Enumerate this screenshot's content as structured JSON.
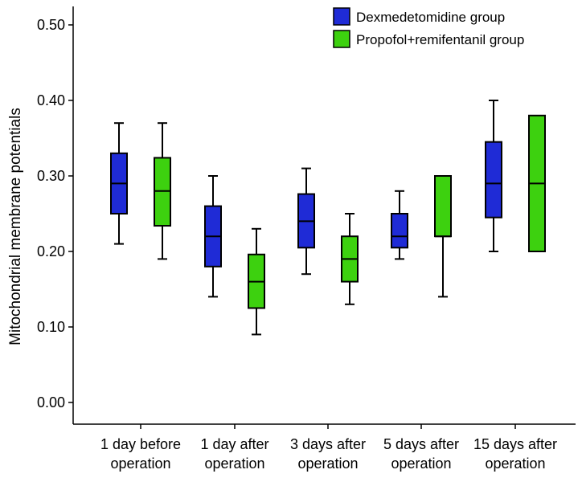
{
  "chart_data": {
    "type": "boxplot",
    "title": "",
    "xlabel": "",
    "ylabel": "Mitochondrial membrane potentials",
    "ylim": [
      0.0,
      0.5
    ],
    "yticks": [
      "0.00",
      "0.10",
      "0.20",
      "0.30",
      "0.40",
      "0.50"
    ],
    "ytick_values": [
      0.0,
      0.1,
      0.2,
      0.3,
      0.4,
      0.5
    ],
    "categories": [
      [
        "1 day before",
        "operation"
      ],
      [
        "1 day after",
        "operation"
      ],
      [
        "3 days after",
        "operation"
      ],
      [
        "5 days after",
        "operation"
      ],
      [
        "15 days after",
        "operation"
      ]
    ],
    "legend_position": "top-right",
    "series": [
      {
        "name": "Dexmedetomidine group",
        "color": "#1f2bd6",
        "boxes": [
          {
            "min": 0.21,
            "q1": 0.25,
            "median": 0.29,
            "q3": 0.33,
            "max": 0.37
          },
          {
            "min": 0.14,
            "q1": 0.18,
            "median": 0.22,
            "q3": 0.26,
            "max": 0.3
          },
          {
            "min": 0.17,
            "q1": 0.205,
            "median": 0.24,
            "q3": 0.276,
            "max": 0.31
          },
          {
            "min": 0.19,
            "q1": 0.205,
            "median": 0.22,
            "q3": 0.25,
            "max": 0.28
          },
          {
            "min": 0.2,
            "q1": 0.245,
            "median": 0.29,
            "q3": 0.345,
            "max": 0.4
          }
        ]
      },
      {
        "name": "Propofol+remifentanil group",
        "color": "#3dd10f",
        "boxes": [
          {
            "min": 0.19,
            "q1": 0.234,
            "median": 0.28,
            "q3": 0.324,
            "max": 0.37
          },
          {
            "min": 0.09,
            "q1": 0.125,
            "median": 0.16,
            "q3": 0.196,
            "max": 0.23
          },
          {
            "min": 0.13,
            "q1": 0.16,
            "median": 0.19,
            "q3": 0.22,
            "max": 0.25
          },
          {
            "min": 0.14,
            "q1": 0.22,
            "median": 0.22,
            "q3": 0.3,
            "max": 0.3
          },
          {
            "min": 0.2,
            "q1": 0.2,
            "median": 0.29,
            "q3": 0.38,
            "max": 0.38
          }
        ]
      }
    ]
  }
}
